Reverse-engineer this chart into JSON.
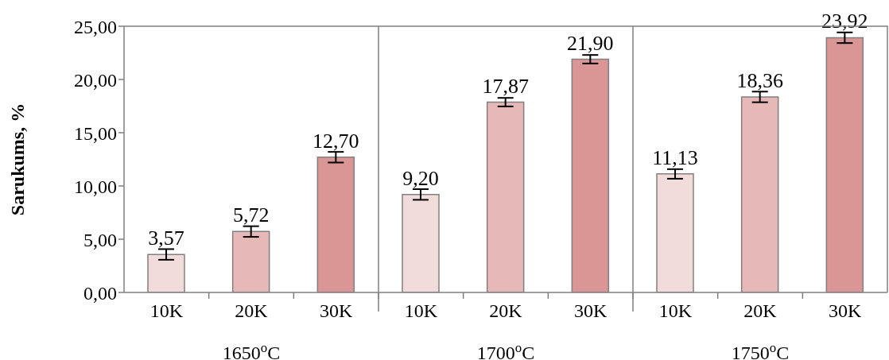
{
  "chart_data": {
    "type": "bar",
    "ylabel": "Sarukums, %",
    "categories": [
      "10K",
      "20K",
      "30K",
      "10K",
      "20K",
      "30K",
      "10K",
      "20K",
      "30K"
    ],
    "annotations": [
      "1650$^{o}$C",
      "1700$^{o}$C",
      "1750$^{o}$C"
    ],
    "values": [
      3.57,
      5.72,
      12.7,
      9.2,
      17.87,
      21.9,
      11.13,
      18.36,
      23.92
    ],
    "value_labels": [
      "3,57",
      "5,72",
      "12,70",
      "9,20",
      "17,87",
      "21,90",
      "11,13",
      "18,36",
      "23,92"
    ],
    "errors": [
      0.5,
      0.5,
      0.5,
      0.5,
      0.4,
      0.4,
      0.45,
      0.5,
      0.5
    ],
    "colors": [
      "#f2dcdb",
      "#e6b9b8",
      "#d99694",
      "#f2dcdb",
      "#e6b9b8",
      "#d99694",
      "#f2dcdb",
      "#e6b9b8",
      "#d99694"
    ],
    "ylim": [
      0,
      25
    ],
    "yticks": [
      {
        "value": 0,
        "label": "0,00"
      },
      {
        "value": 5,
        "label": "5,00"
      },
      {
        "value": 10,
        "label": "10,00"
      },
      {
        "value": 15,
        "label": "15,00"
      },
      {
        "value": 20,
        "label": "20,00"
      },
      {
        "value": 25,
        "label": "25,00"
      }
    ],
    "grid": false,
    "legend": false
  }
}
